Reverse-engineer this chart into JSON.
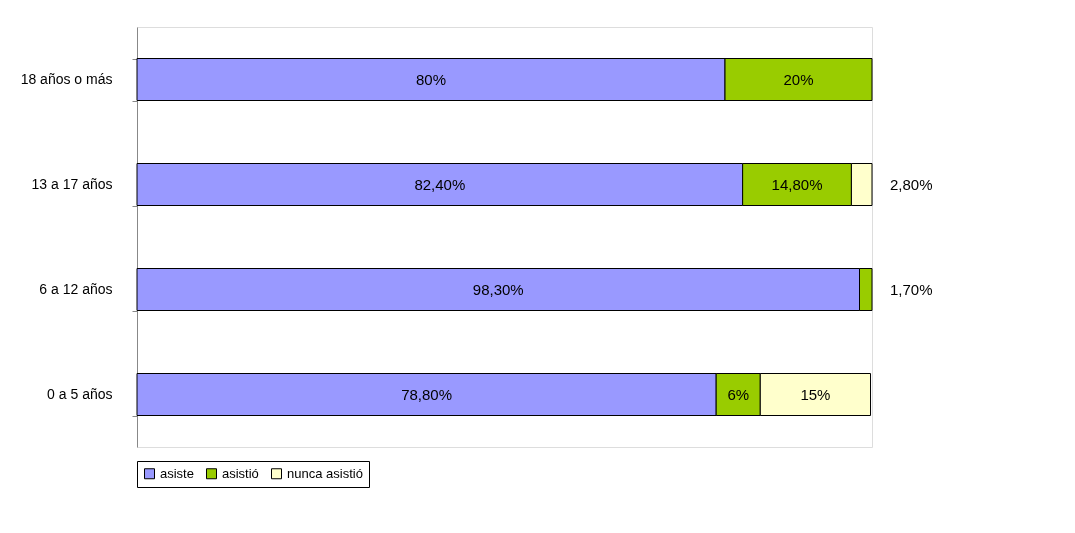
{
  "chart_data": {
    "type": "bar",
    "orientation": "horizontal",
    "stacked": true,
    "categories": [
      "18 años o más",
      "13 a 17 años",
      "6 a 12 años",
      "0 a 5 años"
    ],
    "series": [
      {
        "name": "asiste",
        "color": "#9999ff",
        "values": [
          80,
          82.4,
          98.3,
          78.8
        ],
        "value_labels": [
          "80%",
          "82,40%",
          "98,30%",
          "78,80%"
        ]
      },
      {
        "name": "asistió",
        "color": "#99cc00",
        "values": [
          20,
          14.8,
          1.7,
          6
        ],
        "value_labels": [
          "20%",
          "14,80%",
          "1,70%",
          "6%"
        ]
      },
      {
        "name": "nunca asistió",
        "color": "#ffffcc",
        "values": [
          null,
          2.8,
          null,
          15
        ],
        "value_labels": [
          null,
          "2,80%",
          null,
          "15%"
        ]
      }
    ],
    "legend": "bottom",
    "grid": false
  }
}
